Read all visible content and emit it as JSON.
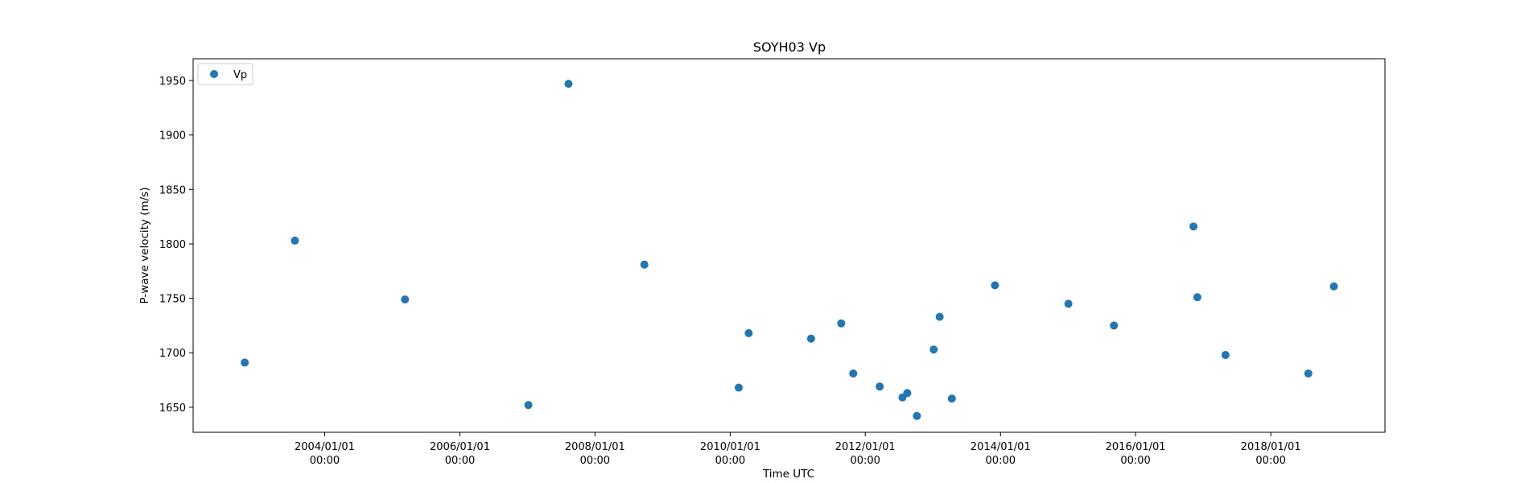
{
  "chart_data": {
    "type": "scatter",
    "title": "SOYH03 Vp",
    "xlabel": "Time UTC",
    "ylabel": "P-wave velocity (m/s)",
    "xlim": [
      "2002-01-20",
      "2019-09-10"
    ],
    "ylim": [
      1627,
      1970
    ],
    "x_ticks": [
      {
        "date": "2004-01-01",
        "line1": "2004/01/01",
        "line2": "00:00"
      },
      {
        "date": "2006-01-01",
        "line1": "2006/01/01",
        "line2": "00:00"
      },
      {
        "date": "2008-01-01",
        "line1": "2008/01/01",
        "line2": "00:00"
      },
      {
        "date": "2010-01-01",
        "line1": "2010/01/01",
        "line2": "00:00"
      },
      {
        "date": "2012-01-01",
        "line1": "2012/01/01",
        "line2": "00:00"
      },
      {
        "date": "2014-01-01",
        "line1": "2014/01/01",
        "line2": "00:00"
      },
      {
        "date": "2016-01-01",
        "line1": "2016/01/01",
        "line2": "00:00"
      },
      {
        "date": "2018-01-01",
        "line1": "2018/01/01",
        "line2": "00:00"
      }
    ],
    "y_ticks": [
      1650,
      1700,
      1750,
      1800,
      1850,
      1900,
      1950
    ],
    "grid": false,
    "legend_position": "top-left",
    "series": [
      {
        "name": "Vp",
        "color": "#1f77b4",
        "points": [
          {
            "x": "2002-10-26",
            "y": 1691
          },
          {
            "x": "2003-07-24",
            "y": 1803
          },
          {
            "x": "2005-03-10",
            "y": 1749
          },
          {
            "x": "2007-01-06",
            "y": 1652
          },
          {
            "x": "2007-08-11",
            "y": 1947
          },
          {
            "x": "2008-09-24",
            "y": 1781
          },
          {
            "x": "2010-02-16",
            "y": 1668
          },
          {
            "x": "2010-04-11",
            "y": 1718
          },
          {
            "x": "2011-03-14",
            "y": 1713
          },
          {
            "x": "2011-08-24",
            "y": 1727
          },
          {
            "x": "2011-10-28",
            "y": 1681
          },
          {
            "x": "2012-03-19",
            "y": 1669
          },
          {
            "x": "2012-07-20",
            "y": 1659
          },
          {
            "x": "2012-08-15",
            "y": 1663
          },
          {
            "x": "2012-10-06",
            "y": 1642
          },
          {
            "x": "2013-01-05",
            "y": 1703
          },
          {
            "x": "2013-02-06",
            "y": 1733
          },
          {
            "x": "2013-04-13",
            "y": 1658
          },
          {
            "x": "2013-12-02",
            "y": 1762
          },
          {
            "x": "2015-01-03",
            "y": 1745
          },
          {
            "x": "2015-09-06",
            "y": 1725
          },
          {
            "x": "2016-11-09",
            "y": 1816
          },
          {
            "x": "2016-11-30",
            "y": 1751
          },
          {
            "x": "2017-05-01",
            "y": 1698
          },
          {
            "x": "2018-07-23",
            "y": 1681
          },
          {
            "x": "2018-12-08",
            "y": 1761
          }
        ]
      }
    ]
  }
}
